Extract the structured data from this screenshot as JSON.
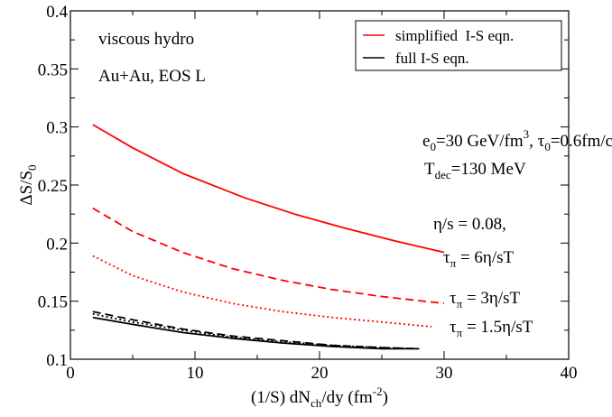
{
  "chart_data": {
    "type": "line",
    "title": "",
    "xlabel_parts": {
      "main": "(1/S) dN",
      "sub": "ch",
      "mid": "/dy (fm",
      "sup": "-2",
      "end": ")"
    },
    "ylabel_parts": {
      "main": "ΔS/S",
      "sub": "0"
    },
    "xlim": [
      0,
      40
    ],
    "ylim": [
      0.1,
      0.4
    ],
    "x_ticks": [
      0,
      10,
      20,
      30,
      40
    ],
    "x_tick_labels": [
      "0",
      "10",
      "20",
      "30",
      "40"
    ],
    "y_ticks": [
      0.1,
      0.15,
      0.2,
      0.25,
      0.3,
      0.35,
      0.4
    ],
    "y_tick_labels": [
      "0.1",
      "0.15",
      "0.2",
      "0.25",
      "0.3",
      "0.35",
      "0.4"
    ],
    "grid": false,
    "legend_position": "top-right",
    "legend": [
      {
        "label": "simplified  I-S eqn.",
        "color": "#ff0000"
      },
      {
        "label": "full I-S eqn.",
        "color": "#000000"
      }
    ],
    "series": [
      {
        "color": "#ff0000",
        "dash": "solid",
        "x": [
          1.8,
          5,
          9,
          14,
          18,
          22,
          26,
          30
        ],
        "y": [
          0.302,
          0.282,
          0.26,
          0.239,
          0.225,
          0.213,
          0.202,
          0.192
        ]
      },
      {
        "color": "#ff0000",
        "dash": "dashed",
        "x": [
          1.8,
          5,
          9,
          13,
          17,
          21,
          25,
          30
        ],
        "y": [
          0.23,
          0.21,
          0.192,
          0.178,
          0.168,
          0.16,
          0.154,
          0.148
        ]
      },
      {
        "color": "#ff0000",
        "dash": "dotted",
        "x": [
          1.8,
          5,
          9,
          13,
          17,
          21,
          25,
          29
        ],
        "y": [
          0.189,
          0.172,
          0.158,
          0.148,
          0.141,
          0.136,
          0.132,
          0.128
        ]
      },
      {
        "color": "#000000",
        "dash": "dashed",
        "x": [
          1.8,
          5,
          9,
          13,
          17,
          21,
          25,
          28
        ],
        "y": [
          0.141,
          0.134,
          0.126,
          0.12,
          0.116,
          0.112,
          0.11,
          0.109
        ]
      },
      {
        "color": "#000000",
        "dash": "dotted",
        "x": [
          1.8,
          5,
          9,
          13,
          17,
          21,
          25,
          28
        ],
        "y": [
          0.139,
          0.132,
          0.125,
          0.119,
          0.115,
          0.112,
          0.11,
          0.109
        ]
      },
      {
        "color": "#000000",
        "dash": "solid",
        "x": [
          1.8,
          5,
          9,
          13,
          17,
          21,
          25,
          28
        ],
        "y": [
          0.136,
          0.13,
          0.123,
          0.118,
          0.114,
          0.111,
          0.109,
          0.109
        ]
      }
    ],
    "annotations": {
      "line1": "viscous hydro",
      "line2": "Au+Au, EOS L",
      "e0_main": "e",
      "e0_sub": "0",
      "e0_mid": "=30 GeV/fm",
      "e0_sup": "3",
      "e0_rest": ", τ",
      "tau0_sub": "0",
      "tau0_end": "=0.6fm/c",
      "tdec_main": "T",
      "tdec_sub": "dec",
      "tdec_end": "=130 MeV",
      "etas": "η/s = 0.08,",
      "tau_sym": "τ",
      "tau_sub": "π",
      "tau1_val": " = 6η/sT",
      "tau2_val": " = 3η/sT",
      "tau3_val": " = 1.5η/sT"
    }
  }
}
